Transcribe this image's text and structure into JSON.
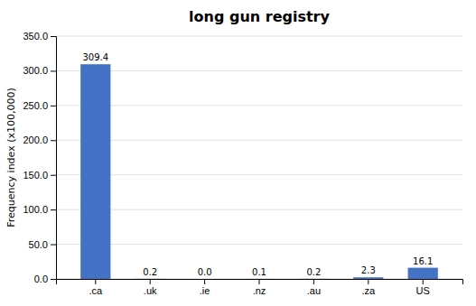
{
  "chart_data": {
    "type": "bar",
    "title": "long gun registry",
    "categories": [
      ".ca",
      ".uk",
      ".ie",
      ".nz",
      ".au",
      ".za",
      "US"
    ],
    "values": [
      309.4,
      0.2,
      0.0,
      0.1,
      0.2,
      2.3,
      16.1
    ],
    "value_labels": [
      "309.4",
      "0.2",
      "0.0",
      "0.1",
      "0.2",
      "2.3",
      "16.1"
    ],
    "data_labels": true,
    "color": "#4472C4",
    "ylabel": "Frequency index (x100,000)",
    "ylim": [
      0,
      350
    ],
    "yticks": [
      {
        "value": 0,
        "label": "0.0"
      },
      {
        "value": 50,
        "label": "50.0"
      },
      {
        "value": 100,
        "label": "100.0"
      },
      {
        "value": 150,
        "label": "150.0"
      },
      {
        "value": 200,
        "label": "200.0"
      },
      {
        "value": 250,
        "label": "250.0"
      },
      {
        "value": 300,
        "label": "300.0"
      },
      {
        "value": 350,
        "label": "350.0"
      }
    ],
    "grid": true
  }
}
